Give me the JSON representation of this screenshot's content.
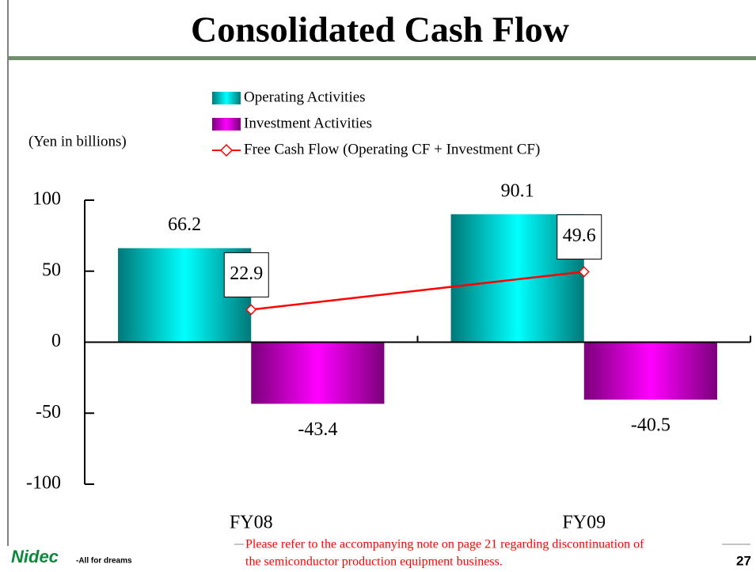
{
  "chart_data": {
    "type": "bar",
    "title": "Consolidated Cash Flow",
    "y_axis_label": "(Yen in billions)",
    "categories": [
      "FY08",
      "FY09"
    ],
    "series": [
      {
        "name": "Operating Activities",
        "color": "#00c8c8",
        "values": [
          66.2,
          90.1
        ]
      },
      {
        "name": "Investment Activities",
        "color": "#cc00cc",
        "values": [
          -43.4,
          -40.5
        ]
      },
      {
        "name": "Free Cash Flow (Operating CF + Investment CF)",
        "color": "#ff0000",
        "type": "line",
        "values": [
          22.9,
          49.6
        ]
      }
    ],
    "ylim": [
      -100,
      100
    ],
    "yticks": [
      -100,
      -50,
      0,
      50,
      100
    ],
    "note": [
      "Please refer to the accompanying note on page 21 regarding discontinuation of",
      "the semiconductor production equipment business."
    ],
    "logo": "Nidec",
    "tagline": "-All for dreams",
    "page_number": "27"
  }
}
